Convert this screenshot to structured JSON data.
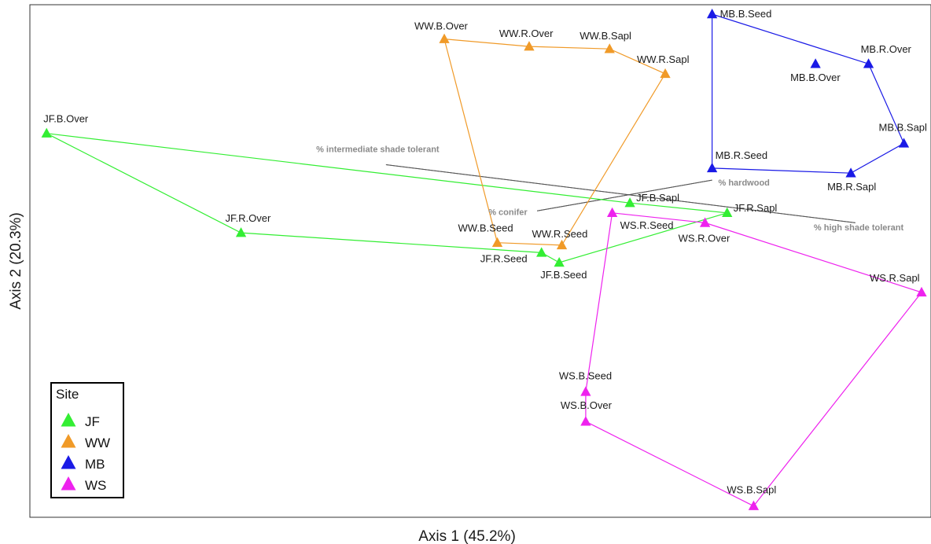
{
  "chart_data": {
    "type": "scatter",
    "xlabel": "Axis 1 (45.2%)",
    "ylabel": "Axis 2 (20.3%)",
    "grid": false,
    "legend_position": "bottom-left",
    "legend": {
      "title": "Site",
      "items": [
        {
          "name": "JF",
          "color": "#33ee33"
        },
        {
          "name": "WW",
          "color": "#f09a28"
        },
        {
          "name": "MB",
          "color": "#1a1ae6"
        },
        {
          "name": "WS",
          "color": "#ee22ee"
        }
      ]
    },
    "series": [
      {
        "name": "JF",
        "color": "#33ee33",
        "points": [
          {
            "label": "JF.B.Over",
            "x": 0.01,
            "y": 0.76
          },
          {
            "label": "JF.R.Over",
            "x": 0.23,
            "y": 0.56
          },
          {
            "label": "JF.R.Seed",
            "x": 0.57,
            "y": 0.52
          },
          {
            "label": "JF.B.Seed",
            "x": 0.59,
            "y": 0.5
          },
          {
            "label": "JF.B.Sapl",
            "x": 0.67,
            "y": 0.62
          },
          {
            "label": "JF.R.Sapl",
            "x": 0.78,
            "y": 0.6
          }
        ],
        "hull": [
          "JF.B.Over",
          "JF.B.Sapl",
          "JF.R.Sapl",
          "JF.B.Seed",
          "JF.R.Seed",
          "JF.R.Over"
        ]
      },
      {
        "name": "WW",
        "color": "#f09a28",
        "points": [
          {
            "label": "WW.B.Over",
            "x": 0.46,
            "y": 0.95
          },
          {
            "label": "WW.R.Over",
            "x": 0.556,
            "y": 0.935
          },
          {
            "label": "WW.B.Sapl",
            "x": 0.647,
            "y": 0.93
          },
          {
            "label": "WW.R.Sapl",
            "x": 0.71,
            "y": 0.88
          },
          {
            "label": "WW.B.Seed",
            "x": 0.52,
            "y": 0.54
          },
          {
            "label": "WW.R.Seed",
            "x": 0.593,
            "y": 0.535
          }
        ],
        "hull": [
          "WW.B.Over",
          "WW.R.Over",
          "WW.B.Sapl",
          "WW.R.Sapl",
          "WW.R.Seed",
          "WW.B.Seed"
        ]
      },
      {
        "name": "MB",
        "color": "#1a1ae6",
        "points": [
          {
            "label": "MB.B.Seed",
            "x": 0.763,
            "y": 1.0
          },
          {
            "label": "MB.R.Over",
            "x": 0.94,
            "y": 0.9
          },
          {
            "label": "MB.B.Over",
            "x": 0.88,
            "y": 0.9
          },
          {
            "label": "MB.B.Sapl",
            "x": 0.98,
            "y": 0.74
          },
          {
            "label": "MB.R.Sapl",
            "x": 0.92,
            "y": 0.68
          },
          {
            "label": "MB.R.Seed",
            "x": 0.763,
            "y": 0.69
          }
        ],
        "hull": [
          "MB.B.Seed",
          "MB.R.Over",
          "MB.B.Sapl",
          "MB.R.Sapl",
          "MB.R.Seed"
        ]
      },
      {
        "name": "WS",
        "color": "#ee22ee",
        "points": [
          {
            "label": "WS.R.Seed",
            "x": 0.65,
            "y": 0.6
          },
          {
            "label": "WS.R.Over",
            "x": 0.755,
            "y": 0.58
          },
          {
            "label": "WS.R.Sapl",
            "x": 1.0,
            "y": 0.44
          },
          {
            "label": "WS.B.Seed",
            "x": 0.62,
            "y": 0.24
          },
          {
            "label": "WS.B.Over",
            "x": 0.62,
            "y": 0.18
          },
          {
            "label": "WS.B.Sapl",
            "x": 0.81,
            "y": 0.01
          }
        ],
        "hull": [
          "WS.R.Seed",
          "WS.R.Over",
          "WS.R.Sapl",
          "WS.B.Sapl",
          "WS.B.Over",
          "WS.B.Seed"
        ]
      }
    ],
    "vectors": [
      {
        "label": "% intermediate shade tolerant",
        "x1": 0.405,
        "y1": 0.72,
        "x2": 0.93,
        "y2": 0.6
      },
      {
        "label": "% hardwood",
        "x1": 0.57,
        "y1": 0.62,
        "x2": 0.79,
        "y2": 0.68
      },
      {
        "label": "% conifer",
        "x1": 0.57,
        "y1": 0.62,
        "x2": 0.79,
        "y2": 0.68
      },
      {
        "label": "% high shade tolerant",
        "x1": 0.405,
        "y1": 0.72,
        "x2": 0.93,
        "y2": 0.6
      }
    ]
  }
}
